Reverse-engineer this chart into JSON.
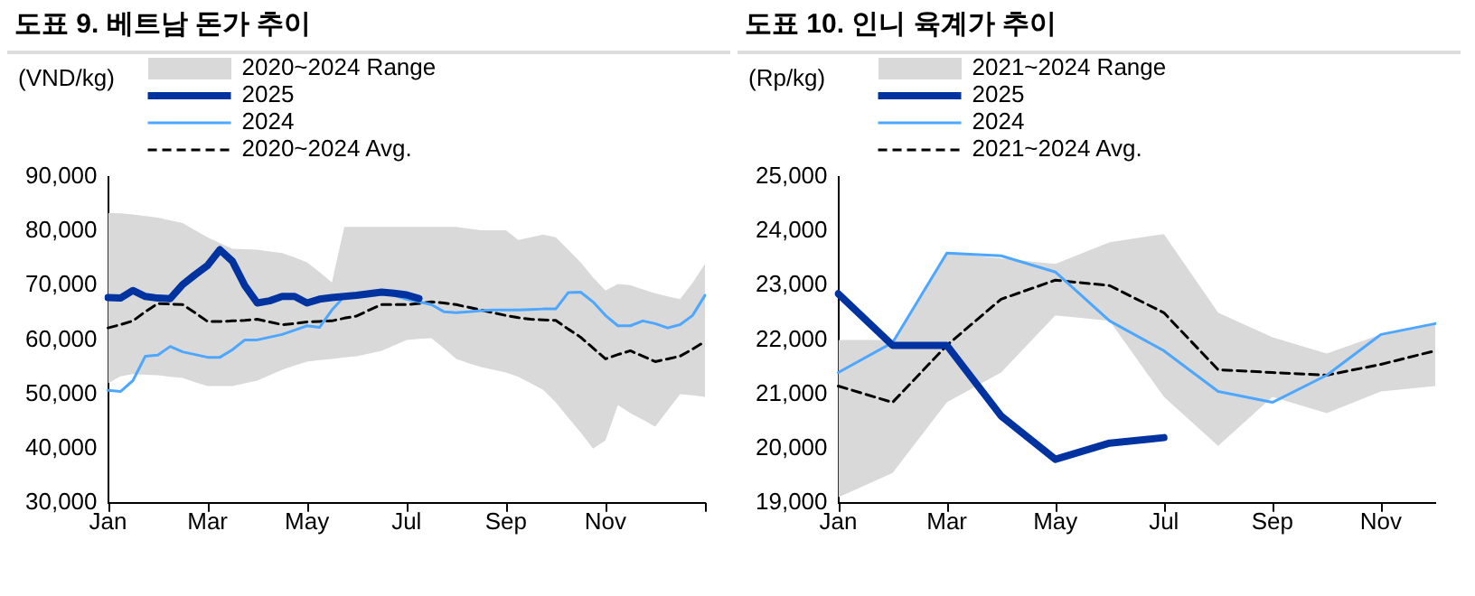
{
  "chart_data": [
    {
      "type": "line",
      "title": "도표 9.  베트남 돈가 추이",
      "ylabel": "(VND/kg)",
      "annotations": [
        "2020~2024 Range"
      ],
      "categories": [
        "Jan",
        null,
        null,
        null,
        null,
        null,
        null,
        null,
        "Mar",
        null,
        null,
        null,
        null,
        null,
        null,
        null,
        "May",
        null,
        null,
        null,
        null,
        null,
        null,
        null,
        "Jul",
        null,
        null,
        null,
        null,
        null,
        null,
        null,
        "Sep",
        null,
        null,
        null,
        null,
        null,
        null,
        null,
        "Nov",
        null,
        null,
        null,
        null,
        null,
        null,
        null,
        null
      ],
      "ylim": [
        30000,
        90000
      ],
      "yticks": [
        {
          "value": 30000,
          "label": "30,000"
        },
        {
          "value": 40000,
          "label": "40,000"
        },
        {
          "value": 50000,
          "label": "50,000"
        },
        {
          "value": 60000,
          "label": "60,000"
        },
        {
          "value": 70000,
          "label": "70,000"
        },
        {
          "value": 80000,
          "label": "80,000"
        },
        {
          "value": 90000,
          "label": "90,000"
        }
      ],
      "legend": "top",
      "series": [
        {
          "name": "2025",
          "type": "line",
          "color": "#0033a0",
          "values": [
            67800,
            67700,
            69100,
            68000,
            67700,
            67600,
            70200,
            72000,
            73700,
            76600,
            74500,
            70000,
            66800,
            67200,
            68000,
            68000,
            66800,
            67500,
            67800,
            68000,
            68200,
            68500,
            68800,
            68600,
            68300,
            67600,
            null,
            null,
            null,
            null,
            null,
            null,
            null,
            null,
            null,
            null,
            null,
            null,
            null,
            null,
            null,
            null,
            null,
            null,
            null,
            null,
            null,
            null,
            null
          ]
        },
        {
          "name": "2024",
          "type": "line",
          "color": "#4da6ff",
          "values": [
            50700,
            50500,
            52500,
            57000,
            57200,
            58800,
            57800,
            57300,
            56800,
            56800,
            58200,
            60000,
            60000,
            60500,
            61000,
            61800,
            62600,
            62300,
            65500,
            68000,
            68300,
            68700,
            69000,
            68200,
            67500,
            67000,
            66500,
            65200,
            65000,
            65200,
            65400,
            65500,
            65500,
            65500,
            65600,
            65700,
            65700,
            68700,
            68800,
            67000,
            64500,
            62600,
            62600,
            63500,
            63000,
            62200,
            62800,
            64500,
            68200
          ]
        },
        {
          "name": "2020~2024 Avg.",
          "type": "line",
          "line_style": "dashed",
          "color": "#000000",
          "values": [
            62200,
            62800,
            63500,
            65200,
            66700,
            66600,
            66500,
            65000,
            63400,
            63400,
            63500,
            63600,
            63800,
            63300,
            62800,
            63000,
            63300,
            63400,
            63500,
            64000,
            64400,
            65500,
            66500,
            66500,
            66500,
            66700,
            67000,
            66800,
            66500,
            66000,
            65500,
            65000,
            64500,
            64100,
            63800,
            63700,
            63600,
            62000,
            60500,
            58500,
            56500,
            57300,
            58000,
            57000,
            56000,
            56500,
            57000,
            58300,
            59700
          ],
          "upper": [
            83400,
            83300,
            83100,
            82800,
            82500,
            82000,
            81500,
            80200,
            78900,
            77800,
            76800,
            76700,
            76600,
            76300,
            76000,
            75200,
            74300,
            72500,
            70600,
            80800,
            80800,
            80800,
            80800,
            80800,
            80800,
            80800,
            80800,
            80800,
            80800,
            80500,
            80200,
            80200,
            80200,
            78400,
            78900,
            79400,
            78900,
            76600,
            74300,
            71500,
            69100,
            70300,
            70100,
            69300,
            68600,
            68000,
            67500,
            70500,
            74000
          ],
          "lower": [
            52000,
            53300,
            53700,
            53600,
            53500,
            53200,
            53000,
            52200,
            51500,
            51500,
            51500,
            52000,
            52500,
            53500,
            54500,
            55300,
            56000,
            56300,
            56500,
            56800,
            57000,
            57500,
            58000,
            59000,
            60000,
            60200,
            60300,
            58500,
            56500,
            55700,
            55000,
            54500,
            54000,
            53200,
            52000,
            50800,
            48500,
            45700,
            43000,
            40000,
            41500,
            48000,
            46500,
            45300,
            44000,
            47000,
            50000,
            49800,
            49500
          ]
        }
      ]
    },
    {
      "type": "line",
      "title": "도표 10.  인니 육계가 추이",
      "ylabel": "(Rp/kg)",
      "annotations": [
        "2021~2024 Range"
      ],
      "categories": [
        "Jan",
        null,
        "Mar",
        null,
        "May",
        null,
        "Jul",
        null,
        "Sep",
        null,
        "Nov",
        null
      ],
      "ylim": [
        19000,
        25000
      ],
      "yticks": [
        {
          "value": 19000,
          "label": "19,000"
        },
        {
          "value": 20000,
          "label": "20,000"
        },
        {
          "value": 21000,
          "label": "21,000"
        },
        {
          "value": 22000,
          "label": "22,000"
        },
        {
          "value": 23000,
          "label": "23,000"
        },
        {
          "value": 24000,
          "label": "24,000"
        },
        {
          "value": 25000,
          "label": "25,000"
        }
      ],
      "legend": "top",
      "series": [
        {
          "name": "2025",
          "type": "line",
          "color": "#0033a0",
          "values": [
            22850,
            21900,
            21900,
            20600,
            19800,
            20100,
            20200,
            null,
            null,
            null,
            null,
            null
          ]
        },
        {
          "name": "2024",
          "type": "line",
          "color": "#4da6ff",
          "values": [
            21400,
            21950,
            23600,
            23550,
            23250,
            22350,
            21800,
            21050,
            20850,
            21350,
            22100,
            22300
          ]
        },
        {
          "name": "2021~2024 Avg.",
          "type": "line",
          "line_style": "dashed",
          "color": "#000000",
          "values": [
            21150,
            20850,
            21900,
            22750,
            23100,
            23000,
            22500,
            21450,
            21400,
            21350,
            21550,
            21800
          ],
          "upper": [
            22000,
            22000,
            23600,
            23500,
            23400,
            23800,
            23950,
            22500,
            22050,
            21750,
            22100,
            22300
          ],
          "lower": [
            19100,
            19550,
            20850,
            21400,
            22450,
            22350,
            20950,
            20050,
            20950,
            20650,
            21050,
            21150
          ]
        }
      ]
    }
  ]
}
